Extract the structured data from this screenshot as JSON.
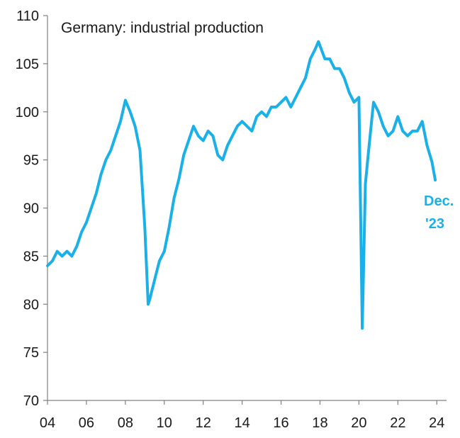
{
  "chart_data": {
    "type": "line",
    "title": "Germany: industrial production",
    "xlabel": "",
    "ylabel": "",
    "xlim": [
      2004,
      2024.5
    ],
    "ylim": [
      70,
      110
    ],
    "x_ticks": [
      2004,
      2006,
      2008,
      2010,
      2012,
      2014,
      2016,
      2018,
      2020,
      2022,
      2024
    ],
    "x_tick_labels": [
      "04",
      "06",
      "08",
      "10",
      "12",
      "14",
      "16",
      "18",
      "20",
      "22",
      "24"
    ],
    "y_ticks": [
      70,
      75,
      80,
      85,
      90,
      95,
      100,
      105,
      110
    ],
    "y_tick_labels": [
      "70",
      "75",
      "80",
      "85",
      "90",
      "95",
      "100",
      "105",
      "110"
    ],
    "grid": false,
    "legend": "none",
    "line_color": "#1ab0e8",
    "annotation": [
      "Dec.",
      "'23"
    ],
    "series": [
      {
        "x": [
          2004.0,
          2004.25,
          2004.5,
          2004.75,
          2005.0,
          2005.25,
          2005.5,
          2005.75,
          2006.0,
          2006.25,
          2006.5,
          2006.75,
          2007.0,
          2007.25,
          2007.5,
          2007.75,
          2008.0,
          2008.25,
          2008.5,
          2008.75,
          2009.0,
          2009.17,
          2009.25,
          2009.5,
          2009.75,
          2010.0,
          2010.25,
          2010.5,
          2010.75,
          2011.0,
          2011.25,
          2011.5,
          2011.75,
          2012.0,
          2012.25,
          2012.5,
          2012.75,
          2013.0,
          2013.25,
          2013.5,
          2013.75,
          2014.0,
          2014.25,
          2014.5,
          2014.75,
          2015.0,
          2015.25,
          2015.5,
          2015.75,
          2016.0,
          2016.25,
          2016.5,
          2016.75,
          2017.0,
          2017.25,
          2017.5,
          2017.75,
          2017.92,
          2018.25,
          2018.5,
          2018.75,
          2019.0,
          2019.25,
          2019.5,
          2019.75,
          2020.0,
          2020.17,
          2020.33,
          2020.5,
          2020.75,
          2021.0,
          2021.25,
          2021.5,
          2021.75,
          2022.0,
          2022.25,
          2022.5,
          2022.75,
          2023.0,
          2023.25,
          2023.5,
          2023.75,
          2023.92
        ],
        "y": [
          84.0,
          84.5,
          85.5,
          85.0,
          85.5,
          85.0,
          86.0,
          87.5,
          88.5,
          90.0,
          91.5,
          93.5,
          95.0,
          96.0,
          97.5,
          99.0,
          101.2,
          100.0,
          98.5,
          96.0,
          88.0,
          80.0,
          80.5,
          82.5,
          84.5,
          85.5,
          88.0,
          91.0,
          93.0,
          95.5,
          97.0,
          98.5,
          97.5,
          97.0,
          98.0,
          97.5,
          95.5,
          95.0,
          96.5,
          97.5,
          98.5,
          99.0,
          98.5,
          98.0,
          99.5,
          100.0,
          99.5,
          100.5,
          100.5,
          101.0,
          101.5,
          100.5,
          101.5,
          102.5,
          103.5,
          105.5,
          106.5,
          107.3,
          105.5,
          105.5,
          104.5,
          104.5,
          103.5,
          102.0,
          101.0,
          101.5,
          77.5,
          92.5,
          96.0,
          101.0,
          100.0,
          98.5,
          97.5,
          98.0,
          99.5,
          98.0,
          97.5,
          98.0,
          98.0,
          99.0,
          96.5,
          94.8,
          92.9
        ]
      }
    ]
  }
}
